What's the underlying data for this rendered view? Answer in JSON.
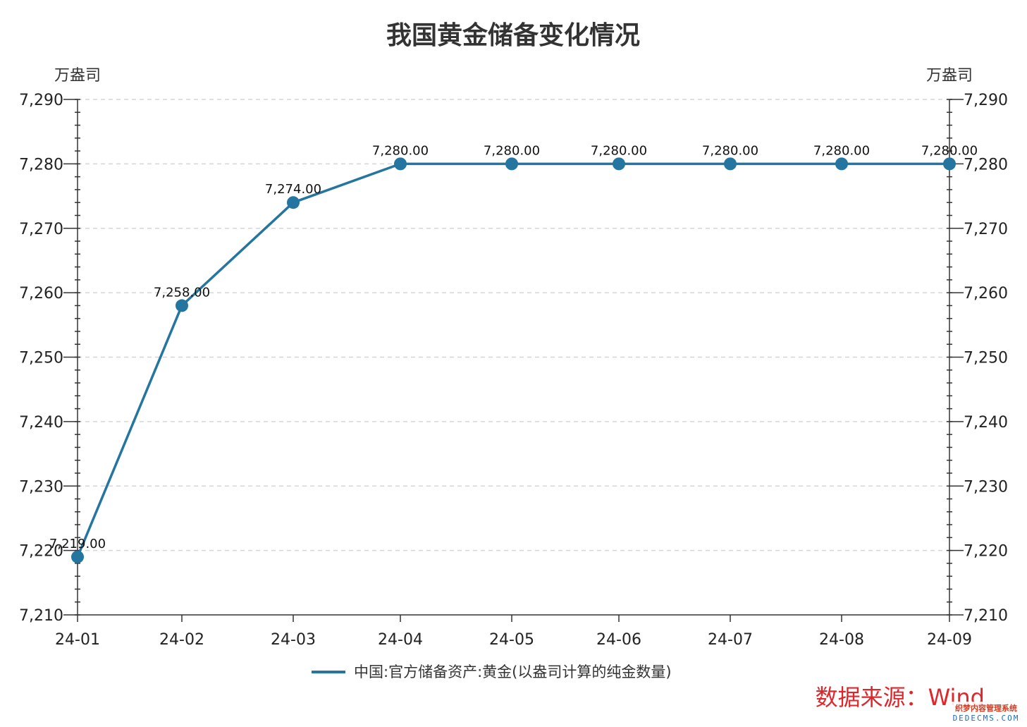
{
  "chart_data": {
    "type": "line",
    "title": "我国黄金储备变化情况",
    "y_unit_left": "万盎司",
    "y_unit_right": "万盎司",
    "categories": [
      "24-01",
      "24-02",
      "24-03",
      "24-04",
      "24-05",
      "24-06",
      "24-07",
      "24-08",
      "24-09"
    ],
    "series": [
      {
        "name": "中国:官方储备资产:黄金(以盎司计算的纯金数量)",
        "values": [
          7219,
          7258,
          7274,
          7280,
          7280,
          7280,
          7280,
          7280,
          7280
        ],
        "labels": [
          "7,219.00",
          "7,258.00",
          "7,274.00",
          "7,280.00",
          "7,280.00",
          "7,280.00",
          "7,280.00",
          "7,280.00",
          "7,280.00"
        ],
        "color": "#24759f"
      }
    ],
    "ylim": [
      7210,
      7290
    ],
    "yticks": [
      7210,
      7220,
      7230,
      7240,
      7250,
      7260,
      7270,
      7280,
      7290
    ],
    "ytick_labels": [
      "7,210",
      "7,220",
      "7,230",
      "7,240",
      "7,250",
      "7,260",
      "7,270",
      "7,280",
      "7,290"
    ],
    "grid": true,
    "legend_position": "bottom-center",
    "source": "数据来源：Wind",
    "watermark": [
      "织梦内容管理系统",
      "DEDECMS.COM"
    ]
  }
}
